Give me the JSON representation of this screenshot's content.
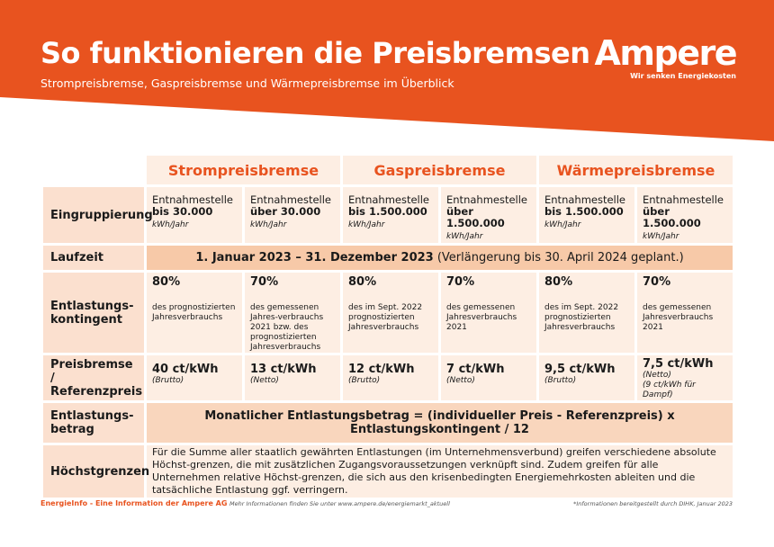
{
  "header": {
    "title": "So funktionieren die Preisbremsen",
    "subtitle": "Strompreisbremse, Gaspreisbremse und Wärmepreisbremse im Überblick",
    "logo_word": "Ampere",
    "logo_claim": "Wir senken Energiekosten",
    "accent_color": "#e8531f"
  },
  "columns": [
    "Strompreisbremse",
    "Gaspreisbremse",
    "Wärmepreisbremse"
  ],
  "rows": {
    "eingruppierung": {
      "label": "Eingruppierung",
      "cells": [
        {
          "line1": "Entnahmestelle",
          "line2": "bis 30.000",
          "unit": "kWh/Jahr"
        },
        {
          "line1": "Entnahmestelle",
          "line2": "über 30.000",
          "unit": "kWh/Jahr"
        },
        {
          "line1": "Entnahmestelle",
          "line2": "bis 1.500.000",
          "unit": "kWh/Jahr"
        },
        {
          "line1": "Entnahmestelle",
          "line2": "über 1.500.000",
          "unit": "kWh/Jahr"
        },
        {
          "line1": "Entnahmestelle",
          "line2": "bis 1.500.000",
          "unit": "kWh/Jahr"
        },
        {
          "line1": "Entnahmestelle",
          "line2": "über 1.500.000",
          "unit": "kWh/Jahr"
        }
      ]
    },
    "laufzeit": {
      "label": "Laufzeit",
      "bold_text": "1. Januar 2023 – 31. Dezember 2023",
      "normal_text": " (Verlängerung bis 30. April 2024 geplant.)"
    },
    "kontingent": {
      "label": "Entlastungs-kontingent",
      "cells": [
        {
          "pct": "80%",
          "desc": "des prognostizierten Jahresverbrauchs"
        },
        {
          "pct": "70%",
          "desc": "des gemessenen Jahres-verbrauchs 2021 bzw. des prognostizierten Jahresverbrauchs"
        },
        {
          "pct": "80%",
          "desc": "des im Sept. 2022 prognostizierten Jahresverbrauchs"
        },
        {
          "pct": "70%",
          "desc": "des gemessenen Jahresverbrauchs 2021"
        },
        {
          "pct": "80%",
          "desc": "des im Sept. 2022 prognostizierten Jahresverbrauchs"
        },
        {
          "pct": "70%",
          "desc": "des gemessenen Jahresverbrauchs 2021"
        }
      ]
    },
    "preis": {
      "label": "Preisbremse / Referenzpreis",
      "cells": [
        {
          "value": "40 ct/kWh",
          "note": "(Brutto)",
          "note2": ""
        },
        {
          "value": "13 ct/kWh",
          "note": "(Netto)",
          "note2": ""
        },
        {
          "value": "12 ct/kWh",
          "note": "(Brutto)",
          "note2": ""
        },
        {
          "value": "7 ct/kWh",
          "note": "(Netto)",
          "note2": ""
        },
        {
          "value": "9,5 ct/kWh",
          "note": "(Brutto)",
          "note2": ""
        },
        {
          "value": "7,5 ct/kWh",
          "note": "(Netto)",
          "note2": "(9 ct/kWh für Dampf)"
        }
      ]
    },
    "betrag": {
      "label": "Entlastungs-betrag",
      "formula": "Monatlicher Entlastungsbetrag = (individueller Preis - Referenzpreis) x Entlastungskontingent / 12"
    },
    "hoechst": {
      "label": "Höchstgrenzen",
      "text": "Für die Summe aller staatlich gewährten Entlastungen (im Unternehmensverbund) greifen verschiedene absolute Höchst-grenzen, die mit zusätzlichen Zugangsvoraussetzungen verknüpft sind. Zudem greifen für alle Unternehmen relative Höchst-grenzen, die sich aus den krisenbedingten Energiemehrkosten ableiten und die tatsächliche Entlastung ggf. verringern."
    }
  },
  "footer": {
    "brand": "EnergieInfo - Eine Information der Ampere AG",
    "more": "Mehr Informationen finden Sie unter www.ampere.de/energiemarkt_aktuell",
    "footnote": "*Informationen bereitgestellt durch DIHK, Januar 2023"
  }
}
